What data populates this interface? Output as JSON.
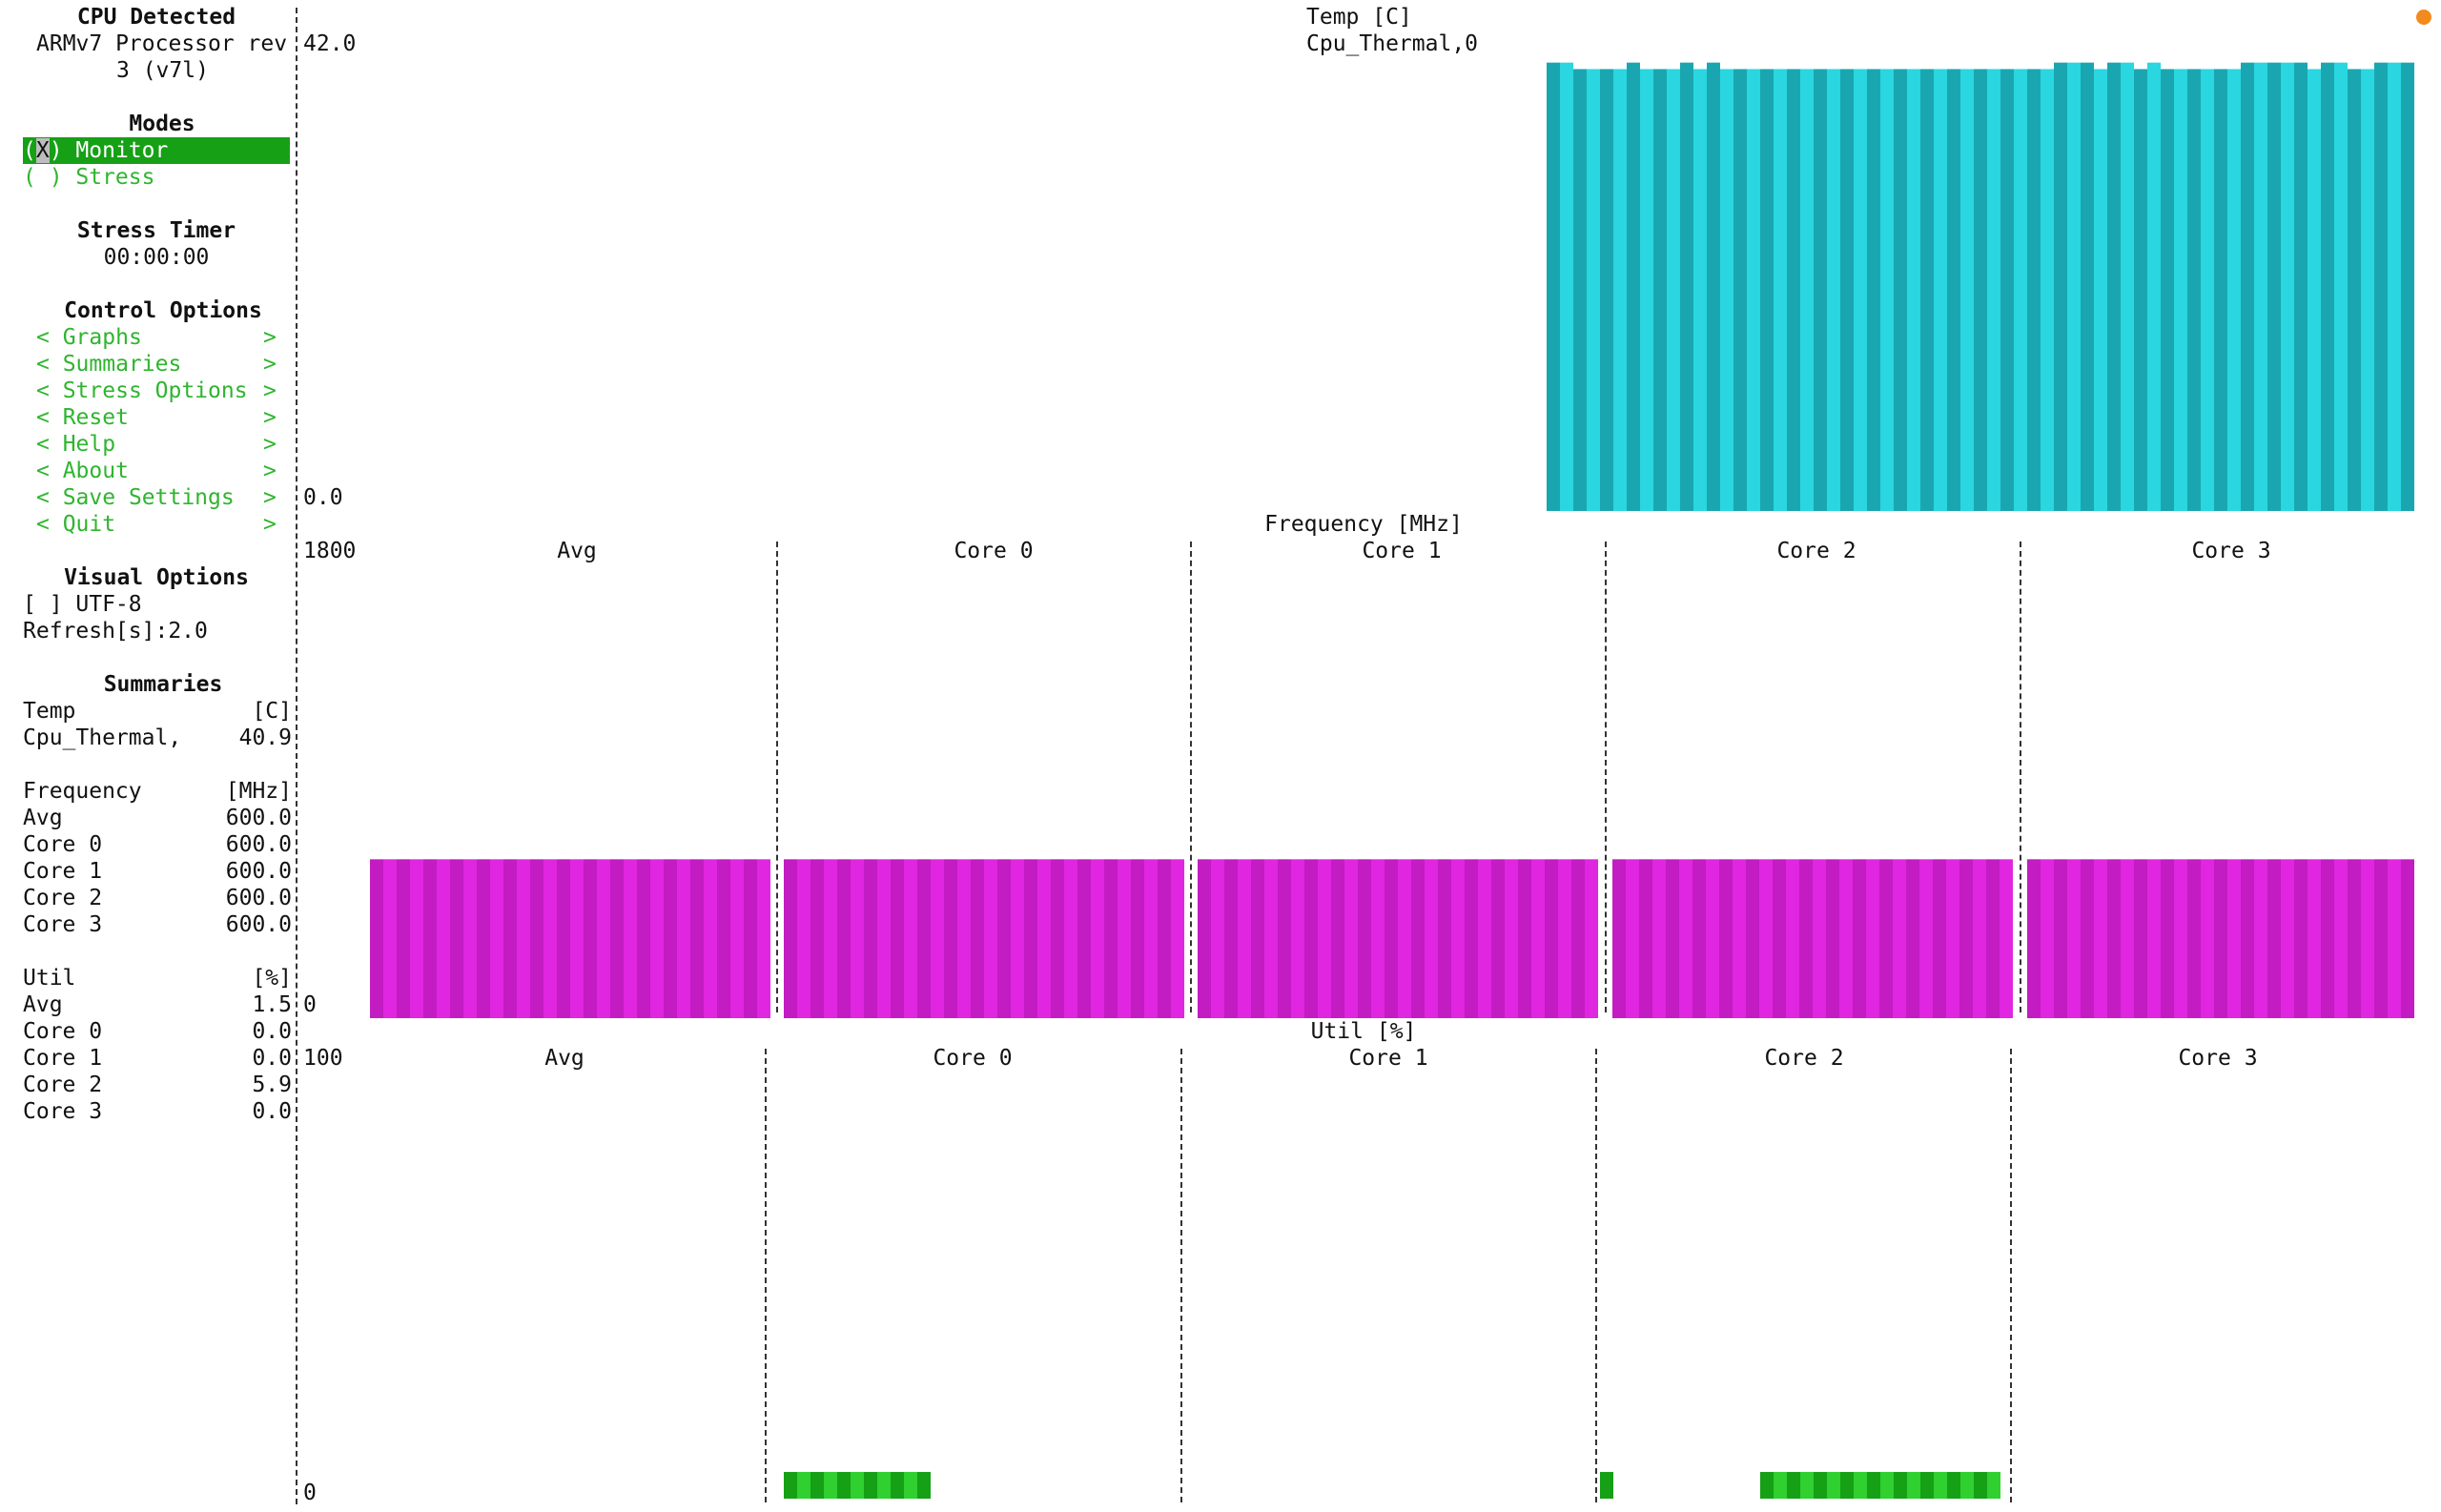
{
  "sidebar": {
    "cpu_title": "CPU Detected",
    "cpu_line1": "ARMv7 Processor rev",
    "cpu_line2": "3 (v7l)",
    "modes_title": "Modes",
    "mode_monitor_prefix": "(",
    "mode_monitor_mark": "X",
    "mode_monitor_suffix": ") Monitor",
    "mode_stress": "( ) Stress",
    "stress_timer_title": "Stress Timer",
    "stress_timer_value": "00:00:00",
    "control_title": "Control Options",
    "control_items": [
      {
        "label": "Graphs"
      },
      {
        "label": "Summaries"
      },
      {
        "label": "Stress Options"
      },
      {
        "label": "Reset"
      },
      {
        "label": "Help"
      },
      {
        "label": "About"
      },
      {
        "label": "Save Settings"
      },
      {
        "label": "Quit"
      }
    ],
    "visual_title": "Visual Options",
    "utf8_option": "[ ] UTF-8",
    "refresh": "Refresh[s]:2.0",
    "summaries_title": "Summaries",
    "temp_header": {
      "label": "Temp",
      "unit": "[C]"
    },
    "temp_rows": [
      {
        "label": "Cpu_Thermal,",
        "value": "40.9"
      }
    ],
    "freq_header": {
      "label": "Frequency",
      "unit": "[MHz]"
    },
    "freq_rows": [
      {
        "label": "Avg",
        "value": "600.0"
      },
      {
        "label": "Core 0",
        "value": "600.0"
      },
      {
        "label": "Core 1",
        "value": "600.0"
      },
      {
        "label": "Core 2",
        "value": "600.0"
      },
      {
        "label": "Core 3",
        "value": "600.0"
      }
    ],
    "util_header": {
      "label": "Util",
      "unit": "[%]"
    },
    "util_rows": [
      {
        "label": "Avg",
        "value": "1.5"
      },
      {
        "label": "Core 0",
        "value": "0.0"
      },
      {
        "label": "Core 1",
        "value": "0.0"
      },
      {
        "label": "Core 2",
        "value": "5.9"
      },
      {
        "label": "Core 3",
        "value": "0.0"
      }
    ]
  },
  "temp_graph": {
    "title": "Temp [C]",
    "subtitle": "Cpu_Thermal,0",
    "y_max_label": "42.0",
    "y_min_label": "0.0"
  },
  "freq_graph": {
    "title": "Frequency [MHz]",
    "y_max_label": "1800",
    "y_min_label": "0",
    "panels": [
      "Avg",
      "Core 0",
      "Core 1",
      "Core 2",
      "Core 3"
    ]
  },
  "util_graph": {
    "title": "Util [%]",
    "y_max_label": "100",
    "y_min_label": "0",
    "panels": [
      "Avg",
      "Core 0",
      "Core 1",
      "Core 2",
      "Core 3"
    ]
  },
  "colors": {
    "temp_dark": "#1aa6b0",
    "temp_light": "#2ad6e0",
    "freq_dark": "#c21cc2",
    "freq_light": "#e026e0",
    "util_dark": "#16a016",
    "util_light": "#2fd02f",
    "accent_dot": "#f28a1e"
  },
  "chart_data": [
    {
      "type": "bar",
      "title": "Temp [C]",
      "series": [
        {
          "name": "Cpu_Thermal,0",
          "values": [
            41.5,
            41.5,
            40.9,
            40.9,
            40.9,
            40.9,
            41.5,
            40.9,
            40.9,
            40.9,
            41.5,
            40.9,
            41.5,
            40.9,
            40.9,
            40.9,
            40.9,
            40.9,
            40.9,
            40.9,
            40.9,
            40.9,
            40.9,
            40.9,
            40.9,
            40.9,
            40.9,
            40.9,
            40.9,
            40.9,
            40.9,
            40.9,
            40.9,
            40.9,
            40.9,
            40.9,
            40.9,
            40.9,
            41.5,
            41.5,
            41.5,
            40.9,
            41.5,
            41.5,
            40.9,
            41.5,
            40.9,
            40.9,
            40.9,
            40.9,
            40.9,
            40.9,
            41.5,
            41.5,
            41.5,
            41.5,
            41.5,
            40.9,
            41.5,
            41.5,
            40.9,
            40.9,
            41.5,
            41.5,
            41.5
          ]
        }
      ],
      "ylim": [
        0,
        42.0
      ]
    },
    {
      "type": "bar",
      "title": "Frequency [MHz]",
      "categories": [
        "Avg",
        "Core 0",
        "Core 1",
        "Core 2",
        "Core 3"
      ],
      "values": [
        600.0,
        600.0,
        600.0,
        600.0,
        600.0
      ],
      "ylim": [
        0,
        1800
      ]
    },
    {
      "type": "bar",
      "title": "Util [%]",
      "categories": [
        "Avg",
        "Core 0",
        "Core 1",
        "Core 2",
        "Core 3"
      ],
      "values": [
        1.5,
        0.0,
        0.0,
        5.9,
        0.0
      ],
      "ylim": [
        0,
        100
      ]
    }
  ]
}
